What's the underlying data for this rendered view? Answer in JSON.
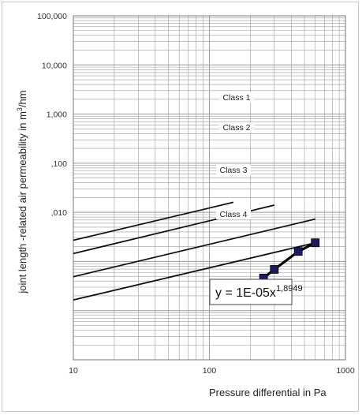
{
  "chart_data": {
    "type": "line",
    "xscale": "log",
    "yscale": "log",
    "xlim": [
      10,
      1000
    ],
    "ylim": [
      0.01,
      100000
    ],
    "grid": true,
    "xlabel": "Pressure differential in Pa",
    "ylabel_prefix": "joint length -related air permeability in m",
    "ylabel_sup": "3",
    "ylabel_suffix": "/hm",
    "x_ticks": [
      {
        "value": 10,
        "label": "10"
      },
      {
        "value": 100,
        "label": "100"
      },
      {
        "value": 1000,
        "label": "1000"
      }
    ],
    "y_ticks": [
      {
        "value": 100000,
        "label": "100,000"
      },
      {
        "value": 10000,
        "label": "10,000"
      },
      {
        "value": 1000,
        "label": "1,000"
      },
      {
        "value": 100,
        "label": ",100"
      },
      {
        "value": 10,
        "label": ",010"
      }
    ],
    "class_lines": [
      {
        "name": "Class 1",
        "x": [
          10,
          150
        ],
        "y": [
          2.7,
          16
        ]
      },
      {
        "name": "Class 2",
        "x": [
          10,
          300
        ],
        "y": [
          1.45,
          14
        ]
      },
      {
        "name": "Class 3",
        "x": [
          10,
          600
        ],
        "y": [
          0.49,
          7.3
        ]
      },
      {
        "name": "Class 4",
        "x": [
          10,
          600
        ],
        "y": [
          0.165,
          2.4
        ]
      }
    ],
    "measured_series": {
      "x": [
        150,
        200,
        250,
        300,
        450,
        600
      ],
      "y": [
        0.19,
        0.31,
        0.46,
        0.69,
        1.6,
        2.4
      ],
      "color": "#1a1a5e"
    },
    "equation": {
      "base": "y = 1E-05x",
      "exponent": "1,8949"
    },
    "colors": {
      "grid": "#9a9a9a",
      "class_lines": "#111111",
      "series_line": "#000000",
      "marker": "#1a1a5e"
    }
  }
}
